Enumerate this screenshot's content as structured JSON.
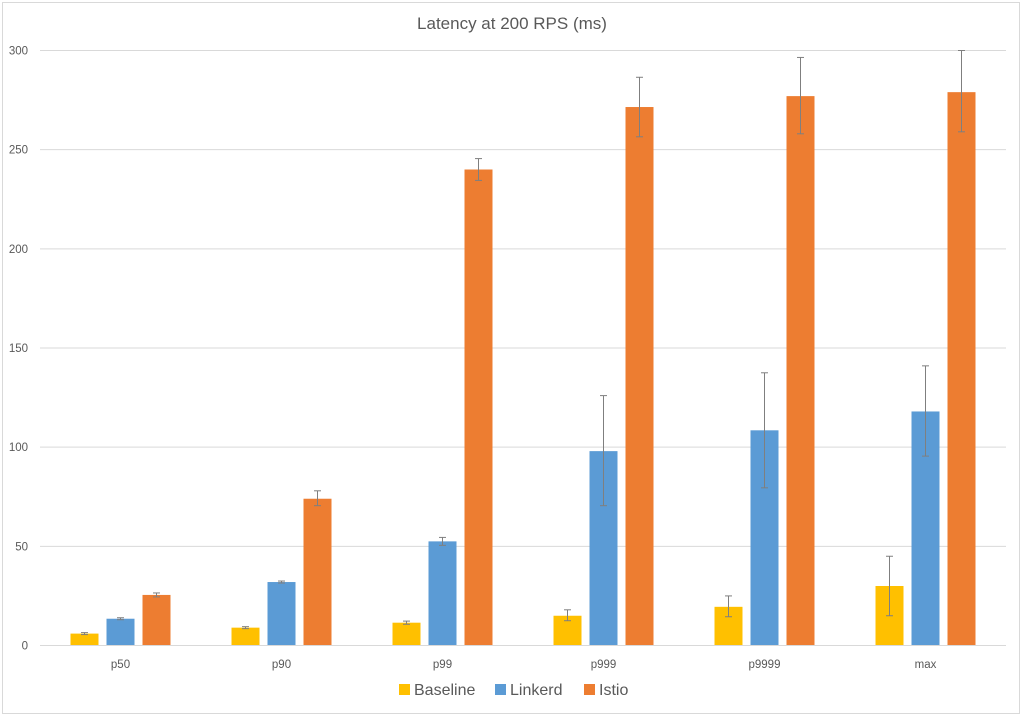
{
  "chart_data": {
    "type": "bar",
    "title": "Latency at 200 RPS (ms)",
    "xlabel": "",
    "ylabel": "",
    "categories": [
      "p50",
      "p90",
      "p99",
      "p999",
      "p9999",
      "max"
    ],
    "ylim": [
      0,
      300
    ],
    "yticks": [
      0,
      50,
      100,
      150,
      200,
      250,
      300
    ],
    "grid": true,
    "legend_position": "bottom",
    "series": [
      {
        "name": "Baseline",
        "color": "#FFC000",
        "values": [
          6,
          9,
          11.5,
          15,
          19.5,
          30
        ],
        "error_low": [
          5.5,
          8.5,
          10.7,
          12.5,
          14.5,
          15
        ],
        "error_high": [
          6.5,
          9.5,
          12.3,
          18,
          25,
          45
        ]
      },
      {
        "name": "Linkerd",
        "color": "#5B9BD5",
        "values": [
          13.5,
          32,
          52.5,
          98,
          108.5,
          118
        ],
        "error_low": [
          13,
          31.5,
          50.5,
          70.5,
          79.5,
          95.5
        ],
        "error_high": [
          14,
          32.5,
          54.5,
          126,
          137.5,
          141
        ]
      },
      {
        "name": "Istio",
        "color": "#ED7D31",
        "values": [
          25.5,
          74,
          240,
          271.5,
          277,
          279
        ],
        "error_low": [
          24.5,
          70.5,
          234.5,
          256.5,
          258,
          259
        ],
        "error_high": [
          26.5,
          78,
          245.5,
          286.5,
          296.5,
          300
        ]
      }
    ]
  }
}
